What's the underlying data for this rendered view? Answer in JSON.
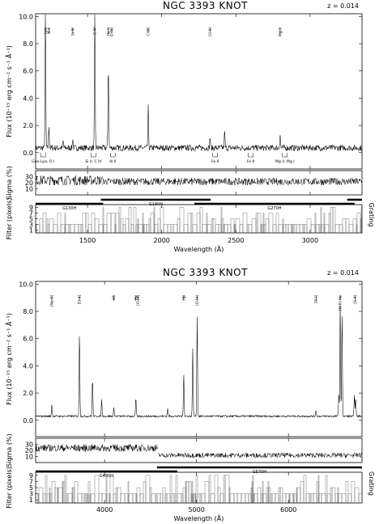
{
  "chart_data": [
    {
      "type": "line",
      "title": "NGC 3393 KNOT",
      "redshift": "z = 0.014",
      "xlabel": "Wavelength (Å)",
      "xlim": [
        1150,
        3350
      ],
      "xticks": [
        1500,
        2000,
        2500,
        3000
      ],
      "flux": {
        "ylabel": "Flux (10⁻¹⁵ erg cm⁻² s⁻¹ Å⁻¹)",
        "ylim": [
          -1.2,
          10.2
        ],
        "yticks": [
          "0.0",
          "2.0",
          "4.0",
          "6.0",
          "8.0",
          "10.0"
        ],
        "continuum": 0.35,
        "noise": 0.22,
        "lines": [
          [
            1216,
            10.0
          ],
          [
            1240,
            1.6
          ],
          [
            1335,
            0.5
          ],
          [
            1400,
            0.7
          ],
          [
            1549,
            9.8
          ],
          [
            1640,
            6.2
          ],
          [
            1909,
            3.0
          ],
          [
            2326,
            0.8
          ],
          [
            2424,
            1.2
          ],
          [
            2798,
            1.0
          ]
        ],
        "emission_labels": [
          {
            "x": 1216,
            "text": "Lyα"
          },
          {
            "x": 1240,
            "text": "N V"
          },
          {
            "x": 1400,
            "text": "Si IV"
          },
          {
            "x": 1549,
            "text": "C IV"
          },
          {
            "x": 1640,
            "text": "He II"
          },
          {
            "x": 1663,
            "text": "O III]"
          },
          {
            "x": 1909,
            "text": "C III]"
          },
          {
            "x": 2326,
            "text": "[C II]"
          },
          {
            "x": 2798,
            "text": "Mg II"
          }
        ],
        "absorption_labels": [
          {
            "x": 1200,
            "text": "Geo-Lya, O I"
          },
          {
            "x": 1540,
            "text": "Si II, C IV"
          },
          {
            "x": 1670,
            "text": "Al II"
          },
          {
            "x": 2360,
            "text": "Fe II"
          },
          {
            "x": 2600,
            "text": "Fe II"
          },
          {
            "x": 2830,
            "text": "Mg II, Mg I"
          }
        ]
      },
      "sigma": {
        "ylabel": "Sigma (%)",
        "ylim": [
          0,
          40
        ],
        "yticks": [
          "10",
          "20",
          "30"
        ],
        "segments": [
          [
            1150,
            1600,
            24,
            8
          ],
          [
            1600,
            3350,
            22,
            6
          ]
        ]
      },
      "filter": {
        "ylabel": "Filter (pixels)",
        "side_label": "Grating",
        "ylim": [
          0,
          10
        ],
        "yticks": [
          "1",
          "3",
          "5",
          "7",
          "9"
        ],
        "gratings": [
          {
            "name": "G130H",
            "start": 1150,
            "end": 1605
          },
          {
            "name": "G190H",
            "start": 1590,
            "end": 2330
          },
          {
            "name": "G270H",
            "start": 2220,
            "end": 3300
          },
          {
            "name": "",
            "start": 3250,
            "end": 3350
          }
        ]
      }
    },
    {
      "type": "line",
      "title": "NGC 3393 KNOT",
      "redshift": "z = 0.014",
      "xlabel": "Wavelength (Å)",
      "xlim": [
        3250,
        6800
      ],
      "xticks": [
        4000,
        5000,
        6000
      ],
      "flux": {
        "ylabel": "Flux (10⁻¹⁵ erg cm⁻² s⁻¹ Å⁻¹)",
        "ylim": [
          -1.2,
          10.2
        ],
        "yticks": [
          "0.0",
          "2.0",
          "4.0",
          "6.0",
          "8.0",
          "10.0"
        ],
        "continuum": 0.3,
        "noise": 0.07,
        "lines": [
          [
            3426,
            0.9
          ],
          [
            3727,
            6.2
          ],
          [
            3869,
            2.8
          ],
          [
            3968,
            1.2
          ],
          [
            4101,
            0.6
          ],
          [
            4340,
            1.3
          ],
          [
            4686,
            0.6
          ],
          [
            4861,
            3.2
          ],
          [
            5007,
            7.4
          ],
          [
            4959,
            5.0
          ],
          [
            6300,
            0.5
          ],
          [
            6548,
            1.6
          ],
          [
            6563,
            8.4
          ],
          [
            6583,
            7.6
          ],
          [
            6717,
            1.5
          ],
          [
            6731,
            1.4
          ]
        ],
        "emission_labels": [
          {
            "x": 3426,
            "text": "[Ne V]"
          },
          {
            "x": 3727,
            "text": "[O II]"
          },
          {
            "x": 4101,
            "text": "Hδ"
          },
          {
            "x": 4340,
            "text": "Hγ"
          },
          {
            "x": 4363,
            "text": "[O III]"
          },
          {
            "x": 4861,
            "text": "Hβ"
          },
          {
            "x": 5007,
            "text": "[O III]"
          },
          {
            "x": 6300,
            "text": "[O I]"
          },
          {
            "x": 6563,
            "text": "[N II] Hα"
          },
          {
            "x": 6725,
            "text": "[S II]"
          }
        ],
        "absorption_labels": []
      },
      "sigma": {
        "ylabel": "Sigma (%)",
        "ylim": [
          0,
          40
        ],
        "yticks": [
          "10",
          "20",
          "30"
        ],
        "segments": [
          [
            3250,
            4580,
            24,
            6
          ],
          [
            4580,
            6800,
            12,
            4
          ]
        ]
      },
      "filter": {
        "ylabel": "Filter (pixels)",
        "side_label": "Grating",
        "ylim": [
          0,
          10
        ],
        "yticks": [
          "1",
          "3",
          "5",
          "7",
          "9"
        ],
        "gratings": [
          {
            "name": "G400H",
            "start": 3250,
            "end": 4790
          },
          {
            "name": "G570H",
            "start": 4570,
            "end": 6800
          }
        ]
      }
    }
  ]
}
